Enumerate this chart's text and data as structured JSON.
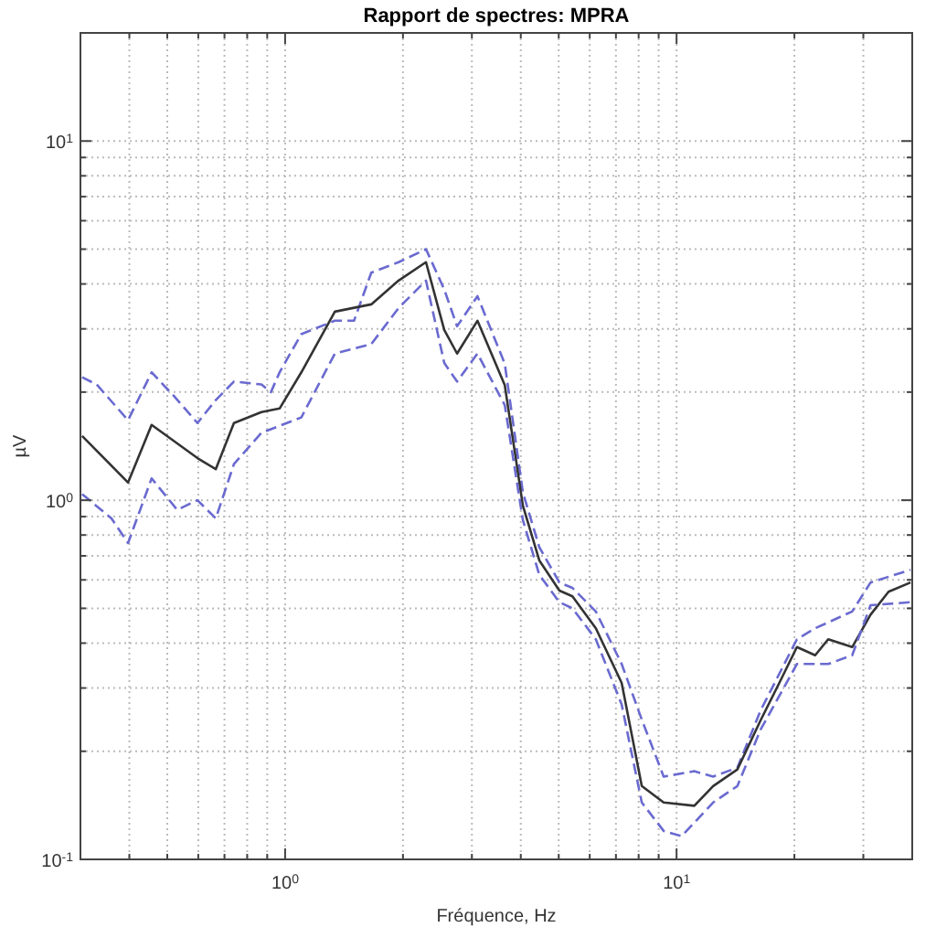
{
  "chart_data": {
    "type": "line",
    "title": "Rapport de spectres: MPRA",
    "xlabel": "Fréquence, Hz",
    "ylabel": "µV",
    "log": "xy",
    "grid": true,
    "marker": "none",
    "xlim": [
      0.3,
      40
    ],
    "ylim": [
      0.1,
      20
    ],
    "xticks": [
      {
        "value": 0.4,
        "label": null
      },
      {
        "value": 0.5,
        "label": null
      },
      {
        "value": 0.6,
        "label": null
      },
      {
        "value": 0.7,
        "label": null
      },
      {
        "value": 0.8,
        "label": null
      },
      {
        "value": 0.9,
        "label": null
      },
      {
        "value": 1,
        "label": "10$^{0}$"
      },
      {
        "value": 2,
        "label": null
      },
      {
        "value": 3,
        "label": null
      },
      {
        "value": 4,
        "label": null
      },
      {
        "value": 5,
        "label": null
      },
      {
        "value": 6,
        "label": null
      },
      {
        "value": 7,
        "label": null
      },
      {
        "value": 8,
        "label": null
      },
      {
        "value": 9,
        "label": null
      },
      {
        "value": 10,
        "label": "10$^{1}$"
      },
      {
        "value": 20,
        "label": null
      },
      {
        "value": 30,
        "label": null
      }
    ],
    "yticks": [
      {
        "value": 0.1,
        "label": "10$^{-1}$"
      },
      {
        "value": 0.2,
        "label": null
      },
      {
        "value": 0.3,
        "label": null
      },
      {
        "value": 0.4,
        "label": null
      },
      {
        "value": 0.5,
        "label": null
      },
      {
        "value": 0.6,
        "label": null
      },
      {
        "value": 0.7,
        "label": null
      },
      {
        "value": 0.8,
        "label": null
      },
      {
        "value": 0.9,
        "label": null
      },
      {
        "value": 1,
        "label": "10$^{0}$"
      },
      {
        "value": 2,
        "label": null
      },
      {
        "value": 3,
        "label": null
      },
      {
        "value": 4,
        "label": null
      },
      {
        "value": 5,
        "label": null
      },
      {
        "value": 6,
        "label": null
      },
      {
        "value": 7,
        "label": null
      },
      {
        "value": 8,
        "label": null
      },
      {
        "value": 9,
        "label": null
      },
      {
        "value": 10,
        "label": "10$^{1}$"
      }
    ],
    "series": [
      {
        "color": "#6a6ad0",
        "line_style": "dashed",
        "x": [
          0.303,
          0.33,
          0.397,
          0.456,
          0.52,
          0.597,
          0.665,
          0.74,
          0.87,
          0.92,
          0.968,
          1.1,
          1.34,
          1.5,
          1.66,
          1.95,
          2.29,
          2.55,
          2.75,
          3.1,
          3.64,
          4.05,
          4.46,
          5.02,
          5.42,
          6.22,
          7.24,
          8.15,
          9.27,
          11.1,
          12.4,
          14.3,
          16.4,
          20.3,
          22.6,
          28.1,
          31.3,
          39.6
        ],
        "values": [
          2.2,
          2.1,
          1.67,
          2.27,
          1.95,
          1.64,
          1.9,
          2.14,
          2.1,
          2.0,
          2.27,
          2.9,
          3.16,
          3.16,
          4.3,
          4.6,
          5.0,
          3.86,
          3.05,
          3.7,
          2.4,
          1.05,
          0.74,
          0.59,
          0.57,
          0.49,
          0.35,
          0.245,
          0.17,
          0.176,
          0.17,
          0.18,
          0.26,
          0.41,
          0.44,
          0.49,
          0.59,
          0.64
        ]
      },
      {
        "color": "#333333",
        "line_style": "solid",
        "x": [
          0.303,
          0.397,
          0.456,
          0.597,
          0.665,
          0.74,
          0.87,
          0.968,
          1.1,
          1.34,
          1.66,
          1.95,
          2.29,
          2.55,
          2.75,
          3.1,
          3.64,
          4.05,
          4.46,
          5.02,
          5.42,
          6.22,
          7.24,
          8.15,
          9.27,
          11.1,
          12.4,
          14.3,
          16.4,
          18.3,
          20.3,
          22.6,
          24.4,
          28.1,
          31.3,
          34.8,
          39.6
        ],
        "values": [
          1.51,
          1.12,
          1.62,
          1.31,
          1.22,
          1.64,
          1.76,
          1.8,
          2.27,
          3.35,
          3.51,
          4.09,
          4.6,
          2.98,
          2.56,
          3.16,
          2.09,
          0.965,
          0.68,
          0.56,
          0.54,
          0.44,
          0.31,
          0.16,
          0.144,
          0.141,
          0.16,
          0.178,
          0.244,
          0.31,
          0.39,
          0.37,
          0.41,
          0.39,
          0.48,
          0.556,
          0.59
        ]
      },
      {
        "color": "#6a6ad0",
        "line_style": "dashed",
        "x": [
          0.303,
          0.36,
          0.397,
          0.456,
          0.53,
          0.597,
          0.665,
          0.74,
          0.87,
          1.1,
          1.34,
          1.66,
          1.95,
          2.29,
          2.55,
          2.75,
          3.1,
          3.64,
          4.05,
          4.46,
          5.02,
          5.42,
          6.22,
          7.24,
          8.15,
          9.27,
          10.3,
          12.4,
          14.3,
          16.4,
          20.3,
          24.4,
          28.1,
          31.3,
          39.6
        ],
        "values": [
          1.04,
          0.89,
          0.76,
          1.15,
          0.94,
          1.0,
          0.89,
          1.26,
          1.54,
          1.7,
          2.56,
          2.72,
          3.43,
          4.09,
          2.41,
          2.14,
          2.56,
          1.84,
          0.88,
          0.62,
          0.52,
          0.5,
          0.41,
          0.27,
          0.144,
          0.12,
          0.116,
          0.144,
          0.16,
          0.23,
          0.35,
          0.35,
          0.37,
          0.51,
          0.52
        ]
      }
    ]
  }
}
